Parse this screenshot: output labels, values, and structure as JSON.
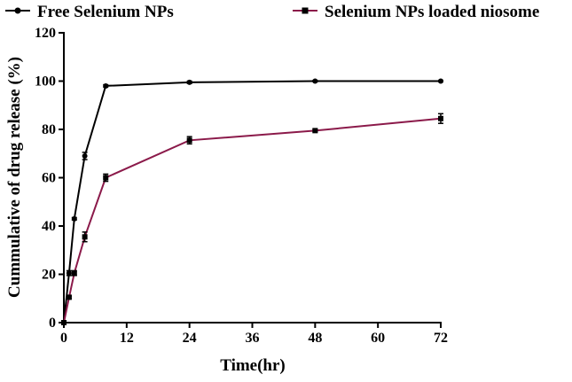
{
  "chart_data": {
    "type": "line",
    "xlabel": "Time(hr)",
    "ylabel": "Cummulative of drug release (%)",
    "xlim": [
      0,
      72
    ],
    "ylim": [
      0,
      120
    ],
    "xticks": [
      0,
      12,
      24,
      36,
      48,
      60,
      72
    ],
    "yticks": [
      0,
      20,
      40,
      60,
      80,
      100,
      120
    ],
    "grid": false,
    "legend_position": "top",
    "series": [
      {
        "name": "Free Selenium NPs",
        "color": "#000000",
        "marker": "circle",
        "x": [
          0,
          1,
          2,
          4,
          8,
          24,
          48,
          72
        ],
        "y": [
          0,
          20.5,
          43,
          69,
          98,
          99.5,
          100,
          100
        ],
        "error": [
          0,
          1,
          0.5,
          1.5,
          0.5,
          0.5,
          0.3,
          0.3
        ]
      },
      {
        "name": "Selenium NPs loaded niosome",
        "color": "#8b1a4a",
        "marker": "square",
        "x": [
          0,
          1,
          2,
          4,
          8,
          24,
          48,
          72
        ],
        "y": [
          0,
          10.5,
          20.5,
          35.5,
          60,
          75.5,
          79.5,
          84.5
        ],
        "error": [
          0,
          0.5,
          1,
          2,
          1.5,
          1.5,
          0.5,
          2
        ]
      }
    ]
  }
}
